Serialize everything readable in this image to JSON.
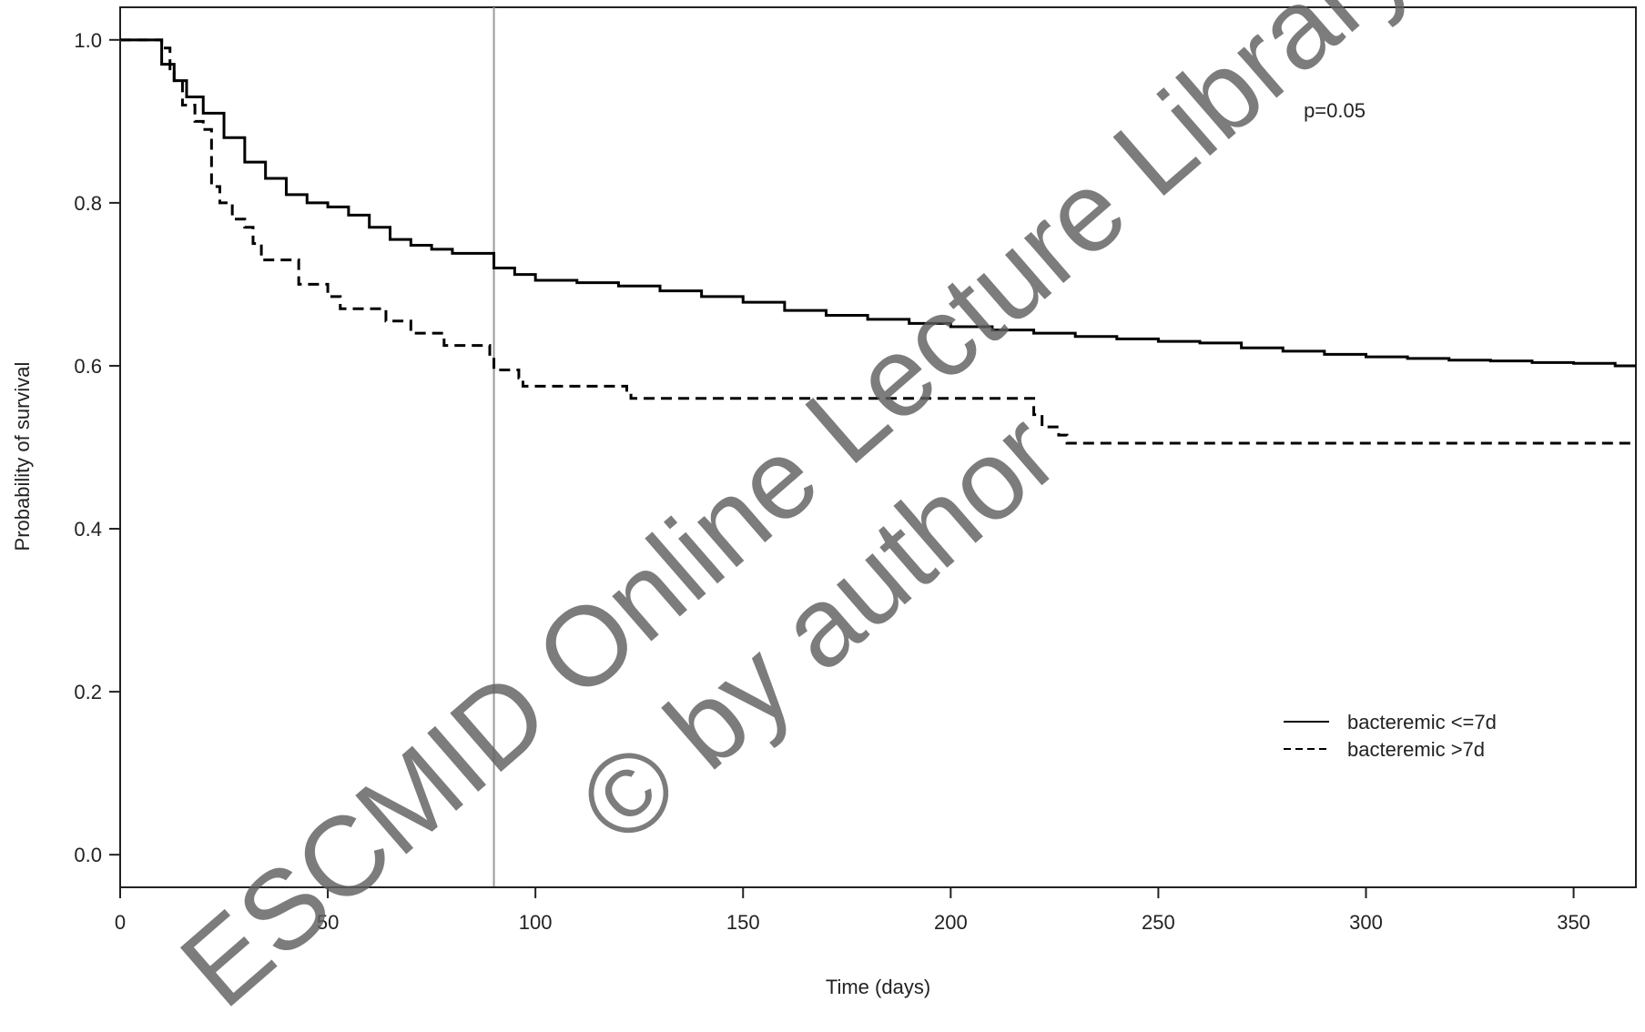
{
  "chart_data": {
    "type": "line",
    "title": "",
    "xlabel": "Time (days)",
    "ylabel": "Probability of survival",
    "xlim": [
      0,
      365
    ],
    "ylim": [
      -0.04,
      1.04
    ],
    "x_ticks": [
      0,
      50,
      100,
      150,
      200,
      250,
      300,
      350
    ],
    "y_ticks": [
      "0.0",
      "0.2",
      "0.4",
      "0.6",
      "0.8",
      "1.0"
    ],
    "grid": false,
    "legend_position": "bottom-right",
    "annotation": "p=0.05",
    "reference_line_x": 90,
    "series": [
      {
        "name": "bacteremic <=7d",
        "line_style": "solid",
        "points": [
          [
            0,
            1.0
          ],
          [
            7,
            1.0
          ],
          [
            10,
            0.97
          ],
          [
            13,
            0.95
          ],
          [
            16,
            0.93
          ],
          [
            20,
            0.91
          ],
          [
            25,
            0.88
          ],
          [
            30,
            0.85
          ],
          [
            35,
            0.83
          ],
          [
            40,
            0.81
          ],
          [
            45,
            0.8
          ],
          [
            50,
            0.795
          ],
          [
            55,
            0.785
          ],
          [
            60,
            0.77
          ],
          [
            65,
            0.755
          ],
          [
            70,
            0.748
          ],
          [
            75,
            0.743
          ],
          [
            80,
            0.738
          ],
          [
            90,
            0.72
          ],
          [
            95,
            0.712
          ],
          [
            100,
            0.705
          ],
          [
            110,
            0.702
          ],
          [
            120,
            0.698
          ],
          [
            130,
            0.692
          ],
          [
            140,
            0.685
          ],
          [
            150,
            0.678
          ],
          [
            160,
            0.668
          ],
          [
            170,
            0.662
          ],
          [
            180,
            0.657
          ],
          [
            190,
            0.652
          ],
          [
            200,
            0.648
          ],
          [
            210,
            0.644
          ],
          [
            220,
            0.64
          ],
          [
            230,
            0.636
          ],
          [
            240,
            0.633
          ],
          [
            250,
            0.63
          ],
          [
            260,
            0.628
          ],
          [
            270,
            0.622
          ],
          [
            280,
            0.618
          ],
          [
            290,
            0.614
          ],
          [
            300,
            0.611
          ],
          [
            310,
            0.609
          ],
          [
            320,
            0.607
          ],
          [
            330,
            0.606
          ],
          [
            340,
            0.604
          ],
          [
            350,
            0.603
          ],
          [
            360,
            0.6
          ],
          [
            365,
            0.6
          ]
        ]
      },
      {
        "name": "bacteremic >7d",
        "line_style": "dashed",
        "points": [
          [
            0,
            1.0
          ],
          [
            7,
            1.0
          ],
          [
            10,
            0.99
          ],
          [
            12,
            0.96
          ],
          [
            13,
            0.95
          ],
          [
            15,
            0.92
          ],
          [
            18,
            0.9
          ],
          [
            20,
            0.89
          ],
          [
            22,
            0.82
          ],
          [
            24,
            0.8
          ],
          [
            27,
            0.78
          ],
          [
            30,
            0.77
          ],
          [
            32,
            0.75
          ],
          [
            34,
            0.73
          ],
          [
            43,
            0.7
          ],
          [
            50,
            0.685
          ],
          [
            53,
            0.67
          ],
          [
            64,
            0.655
          ],
          [
            70,
            0.64
          ],
          [
            78,
            0.625
          ],
          [
            89,
            0.61
          ],
          [
            90,
            0.595
          ],
          [
            96,
            0.585
          ],
          [
            97,
            0.575
          ],
          [
            122,
            0.57
          ],
          [
            123,
            0.56
          ],
          [
            220,
            0.54
          ],
          [
            222,
            0.525
          ],
          [
            226,
            0.515
          ],
          [
            228,
            0.505
          ],
          [
            365,
            0.505
          ]
        ]
      }
    ]
  },
  "watermark": {
    "line1": "ESCMID Online Lecture Library",
    "line2": "© by author"
  }
}
